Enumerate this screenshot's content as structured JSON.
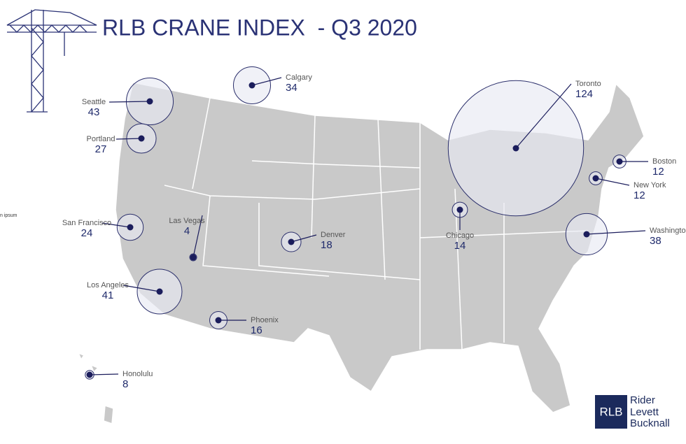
{
  "header": {
    "title": "RLB CRANE INDEX  - Q3 2020"
  },
  "stray_text": "n ipsum",
  "cities": [
    {
      "name": "Calgary",
      "count": 34
    },
    {
      "name": "Seattle",
      "count": 43
    },
    {
      "name": "Portland",
      "count": 27
    },
    {
      "name": "San Francisco",
      "count": 24
    },
    {
      "name": "Las Vegas",
      "count": 4
    },
    {
      "name": "Los Angeles",
      "count": 41
    },
    {
      "name": "Phoenix",
      "count": 16
    },
    {
      "name": "Honolulu",
      "count": 8
    },
    {
      "name": "Denver",
      "count": 18
    },
    {
      "name": "Chicago",
      "count": 14
    },
    {
      "name": "Toronto",
      "count": 124
    },
    {
      "name": "Boston",
      "count": 12
    },
    {
      "name": "New York",
      "count": 12
    },
    {
      "name": "Washington, DC",
      "count": 38
    }
  ],
  "logo": {
    "mark": "RLB",
    "lines": [
      "Rider",
      "Levett",
      "Bucknall"
    ]
  }
}
